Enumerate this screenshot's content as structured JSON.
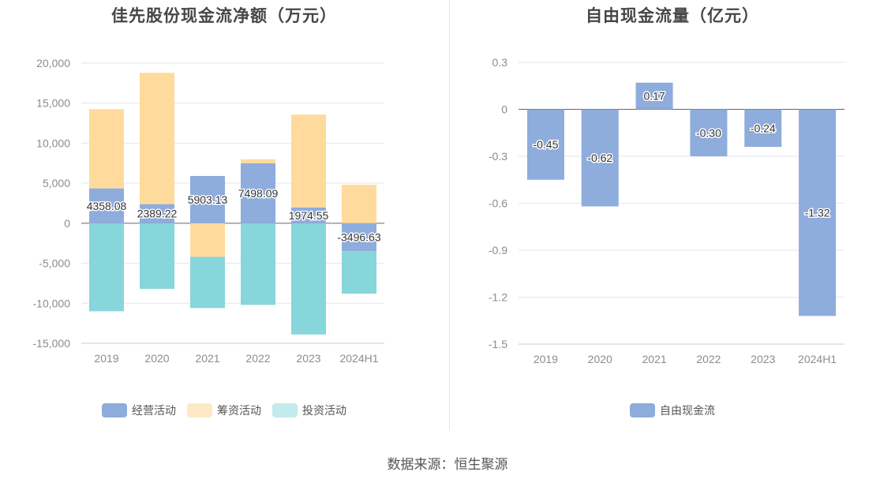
{
  "source": "数据来源：恒生聚源",
  "chart_data": [
    {
      "type": "bar",
      "stacked": true,
      "title": "佳先股份现金流净额（万元）",
      "categories": [
        "2019",
        "2020",
        "2021",
        "2022",
        "2023",
        "2024H1"
      ],
      "ylim": [
        -15000,
        20000
      ],
      "yticks": [
        20000,
        15000,
        10000,
        5000,
        0,
        -5000,
        -10000,
        -15000
      ],
      "ytick_labels": [
        "20,000",
        "15,000",
        "10,000",
        "5,000",
        "0",
        "-5,000",
        "-10,000",
        "-15,000"
      ],
      "grid": true,
      "legend_position": "bottom",
      "series": [
        {
          "name": "经营活动",
          "color": "#8eacdc",
          "values": [
            4358.08,
            2389.22,
            5903.13,
            7498.09,
            1974.55,
            -3496.63
          ],
          "labels": [
            "4358.08",
            "2389.22",
            "5903.13",
            "7498.09",
            "1974.55",
            "-3496.63"
          ]
        },
        {
          "name": "筹资活动",
          "color": "#fedb9c",
          "values": [
            9900,
            16400,
            -4200,
            500,
            11600,
            4800
          ]
        },
        {
          "name": "投资活动",
          "color": "#87d6db",
          "values": [
            -11000,
            -8200,
            -6400,
            -10200,
            -13900,
            -5300
          ]
        }
      ],
      "legend_colors": [
        "#8eacdc",
        "#fee9c6",
        "#c3eaec"
      ]
    },
    {
      "type": "bar",
      "title": "自由现金流量（亿元）",
      "categories": [
        "2019",
        "2020",
        "2021",
        "2022",
        "2023",
        "2024H1"
      ],
      "ylim": [
        -1.5,
        0.3
      ],
      "yticks": [
        0.3,
        0,
        -0.3,
        -0.6,
        -0.9,
        -1.2,
        -1.5
      ],
      "ytick_labels": [
        "0.3",
        "0",
        "-0.3",
        "-0.6",
        "-0.9",
        "-1.2",
        "-1.5"
      ],
      "grid": true,
      "legend_position": "bottom",
      "series": [
        {
          "name": "自由现金流",
          "color": "#8eacdc",
          "values": [
            -0.45,
            -0.62,
            0.17,
            -0.3,
            -0.24,
            -1.32
          ],
          "labels": [
            "-0.45",
            "-0.62",
            "0.17",
            "-0.30",
            "-0.24",
            "-1.32"
          ]
        }
      ],
      "legend_colors": [
        "#8eacdc"
      ]
    }
  ]
}
